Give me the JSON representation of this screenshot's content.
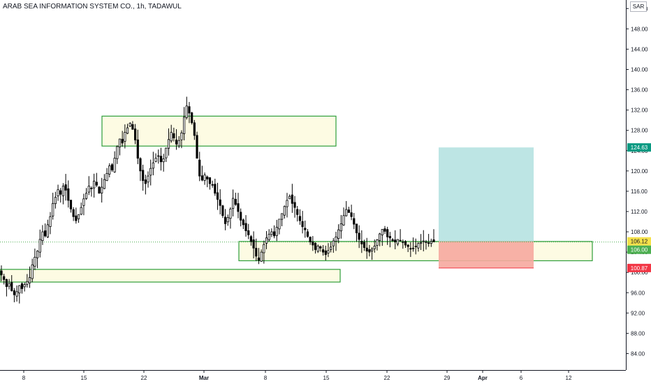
{
  "header": {
    "title": "ARAB SEA INFORMATION SYSTEM CO., 1h, TADAWUL",
    "currency": "SAR"
  },
  "chart_data": {
    "type": "candlestick",
    "title": "ARAB SEA INFORMATION SYSTEM CO., 1h, TADAWUL",
    "price_axis": {
      "ylim": [
        82.0,
        153.0
      ],
      "ticks": [
        "84.00",
        "88.00",
        "92.00",
        "96.00",
        "100.00",
        "104.00",
        "108.00",
        "112.00",
        "116.00",
        "120.00",
        "124.00",
        "128.00",
        "132.00",
        "136.00",
        "140.00",
        "144.00",
        "148.00",
        "152.00"
      ]
    },
    "time_axis": {
      "ticks": [
        "8",
        "15",
        "22",
        "Mar",
        "8",
        "15",
        "22",
        "29",
        "Apr",
        "6",
        "12"
      ]
    },
    "price_labels": [
      {
        "value": 124.63,
        "text": "124.63",
        "color": "#089981",
        "text_color": "#ffffff"
      },
      {
        "value": 106.12,
        "text": "106.12",
        "color": "#f5e14a",
        "text_color": "#131722"
      },
      {
        "value": 106.0,
        "text": "106.00",
        "color": "#4caf50",
        "text_color": "#ffffff"
      },
      {
        "value": 100.87,
        "text": "100.87",
        "color": "#f23645",
        "text_color": "#ffffff"
      }
    ],
    "last_price_line": 106.0,
    "zones": [
      {
        "name": "supply-zone",
        "y_top": 130.8,
        "y_bottom": 124.9,
        "color": "#fdfbe3",
        "border": "#2e9e3a"
      },
      {
        "name": "support-zone-mid",
        "y_top": 106.1,
        "y_bottom": 102.3,
        "color": "#fdfbe3",
        "border": "#2e9e3a"
      },
      {
        "name": "support-zone-low",
        "y_top": 100.6,
        "y_bottom": 98.1,
        "color": "#fdfbe3",
        "border": "#2e9e3a"
      }
    ],
    "long_position": {
      "entry": 106.12,
      "target": 124.63,
      "stop": 100.87,
      "profit_color": "#b2e0df",
      "loss_color": "#f6a99e"
    },
    "series_closes": [
      99.5,
      98.6,
      97.2,
      97.8,
      96.4,
      95.6,
      96.2,
      97.4,
      96.8,
      97.6,
      98.2,
      99.0,
      101.5,
      103.0,
      104.2,
      106.5,
      108.0,
      107.2,
      109.4,
      111.0,
      113.6,
      114.8,
      116.3,
      115.4,
      117.0,
      116.2,
      114.2,
      112.5,
      111.0,
      110.2,
      111.4,
      112.8,
      114.5,
      115.6,
      117.0,
      116.5,
      118.0,
      117.2,
      115.6,
      116.8,
      118.3,
      119.5,
      121.0,
      120.2,
      122.5,
      124.8,
      126.3,
      125.5,
      127.6,
      128.5,
      129.4,
      128.2,
      126.1,
      122.5,
      120.0,
      118.1,
      117.5,
      119.0,
      120.5,
      121.6,
      122.5,
      123.0,
      121.8,
      122.4,
      124.5,
      126.2,
      127.6,
      126.5,
      125.3,
      126.0,
      127.5,
      130.6,
      132.8,
      131.4,
      129.5,
      127.0,
      122.5,
      119.0,
      118.2,
      119.2,
      118.4,
      117.5,
      117.2,
      115.6,
      114.4,
      113.2,
      111.2,
      109.6,
      110.8,
      112.5,
      114.6,
      113.4,
      112.0,
      110.3,
      109.4,
      108.2,
      107.4,
      106.1,
      104.8,
      103.2,
      102.4,
      104.0,
      105.5,
      106.8,
      107.5,
      108.0,
      107.2,
      108.9,
      110.5,
      111.6,
      113.0,
      114.2,
      115.0,
      113.6,
      112.8,
      111.4,
      110.2,
      109.0,
      108.4,
      107.1,
      106.0,
      105.4,
      104.5,
      105.2,
      104.8,
      104.0,
      103.5,
      104.3,
      105.0,
      106.2,
      107.0,
      108.4,
      109.6,
      111.2,
      112.4,
      111.8,
      111.0,
      109.5,
      107.8,
      106.5,
      105.6,
      104.9,
      104.2,
      104.0,
      104.6,
      105.2,
      106.4,
      107.6,
      108.5,
      108.1,
      107.0,
      106.8,
      106.2,
      106.0,
      106.5,
      106.3,
      106.0,
      105.4,
      105.1,
      104.6,
      104.8,
      105.2,
      105.7,
      105.9,
      106.2,
      106.0,
      105.8,
      106.1,
      106.0
    ]
  }
}
